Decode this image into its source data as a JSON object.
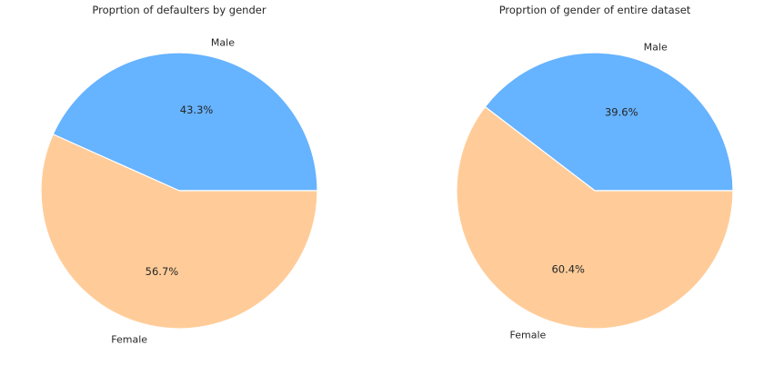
{
  "chart_data": [
    {
      "type": "pie",
      "title": "Proprtion of defaulters by gender",
      "slices": [
        {
          "label": "Male",
          "value": 43.3,
          "pct_label": "43.3%",
          "color": "#66b3ff"
        },
        {
          "label": "Female",
          "value": 56.7,
          "pct_label": "56.7%",
          "color": "#ffcc99"
        }
      ],
      "start_angle": 0,
      "direction": "counterclockwise"
    },
    {
      "type": "pie",
      "title": "Proprtion of gender of entire dataset",
      "slices": [
        {
          "label": "Male",
          "value": 39.6,
          "pct_label": "39.6%",
          "color": "#66b3ff"
        },
        {
          "label": "Female",
          "value": 60.4,
          "pct_label": "60.4%",
          "color": "#ffcc99"
        }
      ],
      "start_angle": 0,
      "direction": "counterclockwise"
    }
  ]
}
